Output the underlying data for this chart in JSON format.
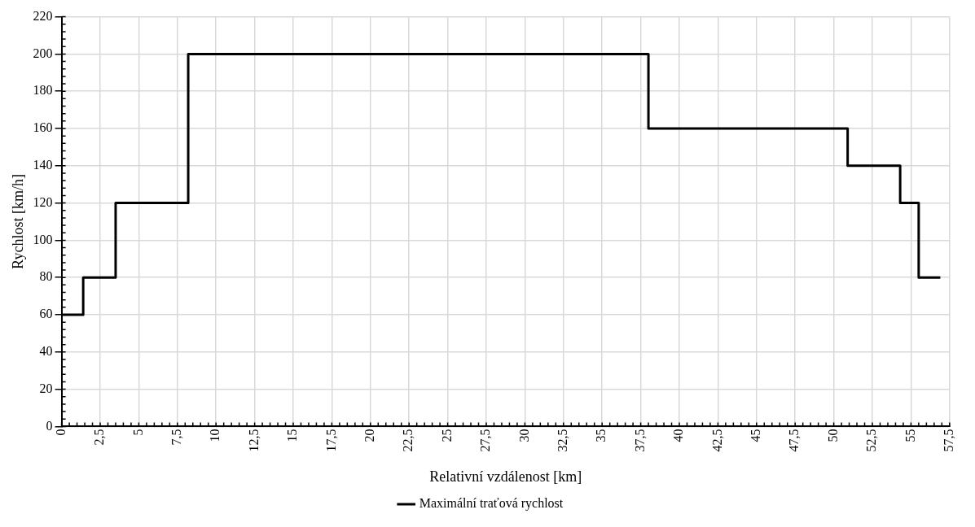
{
  "chart_data": {
    "type": "step",
    "xlabel": "Relativní vzdálenost [km]",
    "ylabel": "Rychlost [km/h]",
    "x": [
      0,
      1.4,
      3.5,
      8.2,
      38.0,
      50.9,
      54.3,
      55.5,
      56.9
    ],
    "series": [
      {
        "name": "Maximální traťová rychlost",
        "color": "#000000",
        "values": [
          60,
          80,
          120,
          200,
          160,
          140,
          120,
          80,
          80
        ]
      }
    ],
    "xlim": [
      0,
      57.5
    ],
    "xticks": [
      0,
      {
        "value": 2.5,
        "label": "2,5"
      },
      5,
      {
        "value": 7.5,
        "label": "7,5"
      },
      10,
      {
        "value": 12.5,
        "label": "12,5"
      },
      15,
      {
        "value": 17.5,
        "label": "17,5"
      },
      20,
      {
        "value": 22.5,
        "label": "22,5"
      },
      25,
      {
        "value": 27.5,
        "label": "27,5"
      },
      30,
      {
        "value": 32.5,
        "label": "32,5"
      },
      35,
      {
        "value": 37.5,
        "label": "37,5"
      },
      40,
      {
        "value": 42.5,
        "label": "42,5"
      },
      45,
      {
        "value": 47.5,
        "label": "47,5"
      },
      50,
      {
        "value": 52.5,
        "label": "52,5"
      },
      55,
      {
        "value": 57.5,
        "label": "57,5"
      }
    ],
    "ylim": [
      0,
      220
    ],
    "yticks": [
      0,
      20,
      40,
      60,
      80,
      100,
      120,
      140,
      160,
      180,
      200,
      220
    ],
    "grid": true,
    "legend": "bottom",
    "marker": "none",
    "line_style": "solid"
  }
}
